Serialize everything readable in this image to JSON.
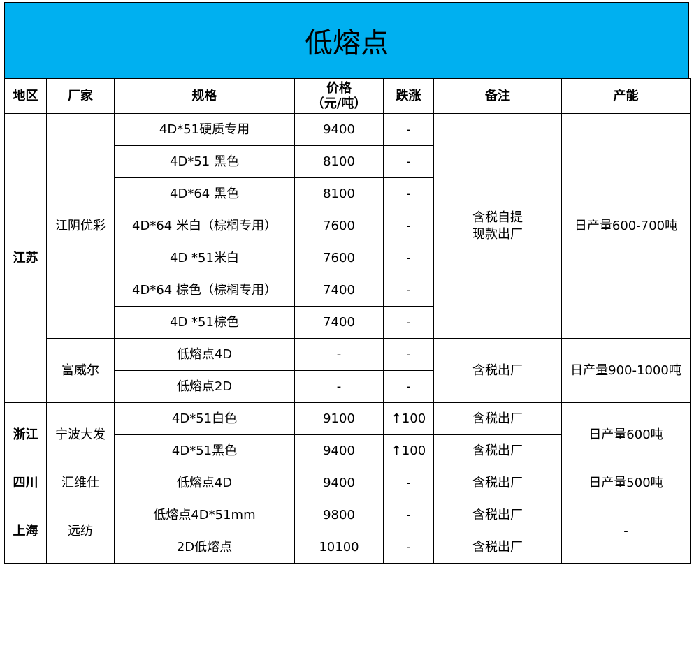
{
  "title": "低熔点",
  "header": {
    "region": "地区",
    "factory": "厂家",
    "spec": "规格",
    "price": "价格\n（元/吨）",
    "change": "跌涨",
    "note": "备注",
    "capacity": "产能"
  },
  "colors": {
    "title_bg": "#00B0F0"
  },
  "regions": [
    {
      "name": "江苏",
      "factories": [
        {
          "name": "江阴优彩",
          "note": "含税自提\n现款出厂",
          "capacity": "日产量600-700吨",
          "products": [
            {
              "spec": "4D*51硬质专用",
              "price": "9400",
              "change": "-"
            },
            {
              "spec": "4D*51 黑色",
              "price": "8100",
              "change": "-"
            },
            {
              "spec": "4D*64 黑色",
              "price": "8100",
              "change": "-"
            },
            {
              "spec": "4D*64 米白（棕榈专用）",
              "price": "7600",
              "change": "-"
            },
            {
              "spec": "4D *51米白",
              "price": "7600",
              "change": "-"
            },
            {
              "spec": "4D*64 棕色（棕榈专用）",
              "price": "7400",
              "change": "-"
            },
            {
              "spec": "4D *51棕色",
              "price": "7400",
              "change": "-"
            }
          ]
        },
        {
          "name": "富威尔",
          "note": "含税出厂",
          "capacity": "日产量900-1000吨",
          "products": [
            {
              "spec": "低熔点4D",
              "price": "-",
              "change": "-"
            },
            {
              "spec": "低熔点2D",
              "price": "-",
              "change": "-"
            }
          ]
        }
      ]
    },
    {
      "name": "浙江",
      "factories": [
        {
          "name": "宁波大发",
          "capacity": "日产量600吨",
          "products": [
            {
              "spec": "4D*51白色",
              "price": "9100",
              "change": "100",
              "change_icon": "arrow-up-icon",
              "note": "含税出厂"
            },
            {
              "spec": "4D*51黑色",
              "price": "9400",
              "change": "100",
              "change_icon": "arrow-up-icon",
              "note": "含税出厂"
            }
          ]
        }
      ]
    },
    {
      "name": "四川",
      "factories": [
        {
          "name": "汇维仕",
          "capacity": "日产量500吨",
          "products": [
            {
              "spec": "低熔点4D",
              "price": "9400",
              "change": "-",
              "note": "含税出厂"
            }
          ]
        }
      ]
    },
    {
      "name": "上海",
      "factories": [
        {
          "name": "远纺",
          "capacity": "-",
          "products": [
            {
              "spec": "低熔点4D*51mm",
              "price": "9800",
              "change": "-",
              "note": "含税出厂"
            },
            {
              "spec": "2D低熔点",
              "price": "10100",
              "change": "-",
              "note": "含税出厂"
            }
          ]
        }
      ]
    }
  ]
}
